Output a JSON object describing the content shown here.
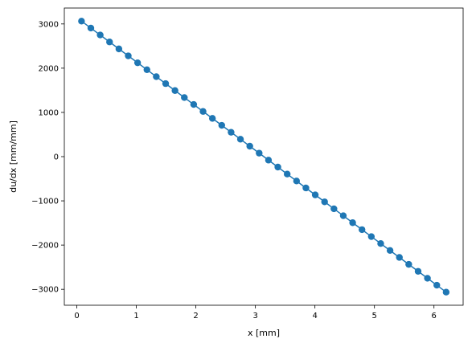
{
  "chart_data": {
    "type": "line",
    "title": "",
    "xlabel": "x [mm]",
    "ylabel": "du/dx [mm/mm]",
    "xlim": [
      -0.21,
      6.49
    ],
    "ylim": [
      -3360,
      3360
    ],
    "grid": false,
    "legend": "none",
    "xticks": [
      0,
      1,
      2,
      3,
      4,
      5,
      6
    ],
    "xtick_labels": [
      "0",
      "1",
      "2",
      "3",
      "4",
      "5",
      "6"
    ],
    "yticks": [
      -3000,
      -2000,
      -1000,
      0,
      1000,
      2000,
      3000
    ],
    "ytick_labels": [
      "−3000",
      "−2000",
      "−1000",
      "0",
      "1000",
      "2000",
      "3000"
    ],
    "series": [
      {
        "color": "#1f77b4",
        "marker": "circle",
        "x": [
          0.0785,
          0.2356,
          0.3927,
          0.5498,
          0.7069,
          0.864,
          1.021,
          1.1781,
          1.3352,
          1.4923,
          1.6494,
          1.8064,
          1.9635,
          2.1206,
          2.2777,
          2.4347,
          2.5918,
          2.7489,
          2.906,
          3.0631,
          3.2201,
          3.3772,
          3.5343,
          3.6914,
          3.8485,
          4.0055,
          4.1626,
          4.3197,
          4.4768,
          4.6339,
          4.7909,
          4.948,
          5.1051,
          5.2622,
          5.4192,
          5.5763,
          5.7334,
          5.8905,
          6.0476,
          6.2046
        ],
        "y": [
          3064,
          2907,
          2750,
          2593,
          2436,
          2279,
          2122,
          1965,
          1808,
          1651,
          1494,
          1336,
          1179,
          1022,
          865,
          708,
          551,
          394,
          236,
          79,
          -79,
          -236,
          -394,
          -551,
          -708,
          -865,
          -1022,
          -1179,
          -1336,
          -1494,
          -1651,
          -1808,
          -1965,
          -2122,
          -2279,
          -2436,
          -2593,
          -2750,
          -2907,
          -3064
        ]
      }
    ]
  }
}
